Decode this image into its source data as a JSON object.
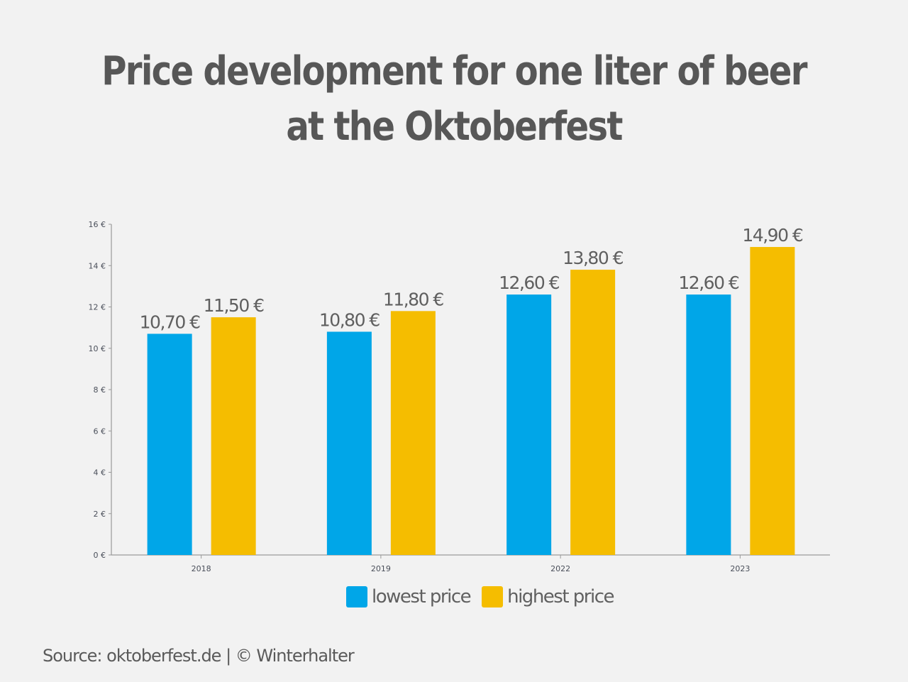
{
  "chart_data": {
    "type": "bar",
    "title": "Price development for one liter of beer at the Oktoberfest",
    "categories": [
      "2018",
      "2019",
      "2022",
      "2023"
    ],
    "series": [
      {
        "name": "lowest price",
        "color": "#00a6e8",
        "values": [
          10.7,
          10.8,
          12.6,
          12.6
        ],
        "labels": [
          "10,70 €",
          "10,80 €",
          "12,60 €",
          "12,60 €"
        ]
      },
      {
        "name": "highest price",
        "color": "#f5bd00",
        "values": [
          11.5,
          11.8,
          13.8,
          14.9
        ],
        "labels": [
          "11,50 €",
          "11,80 €",
          "13,80 €",
          "14,90 €"
        ]
      }
    ],
    "yticks": [
      0,
      2,
      4,
      6,
      8,
      10,
      12,
      14,
      16
    ],
    "ytick_labels": [
      "0 €",
      "2 €",
      "4 €",
      "6 €",
      "8 €",
      "10 €",
      "12 €",
      "14 €",
      "16 €"
    ],
    "ylim": [
      0,
      16
    ],
    "xlabel": "",
    "ylabel": "",
    "grid": false,
    "legend": "bottom-center"
  },
  "title_line1": "Price development for one liter of beer",
  "title_line2": "at the Oktoberfest",
  "source": "Source: oktoberfest.de  | © Winterhalter"
}
